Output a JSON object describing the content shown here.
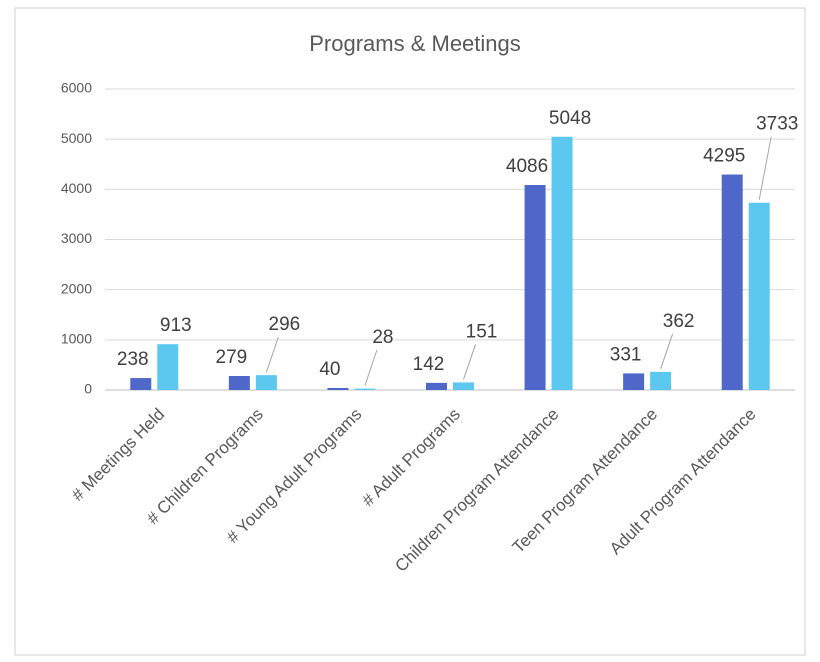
{
  "chart_data": {
    "type": "bar",
    "title": "Programs & Meetings",
    "categories": [
      "# Meetings Held",
      "# Children Programs",
      "# Young Adult Programs",
      "# Adult Programs",
      "Children Program Attendance",
      "Teen Program Attendance",
      "Adult Program Attendance"
    ],
    "series": [
      {
        "color": "#4f67c9",
        "values": [
          238,
          279,
          40,
          142,
          4086,
          331,
          4295
        ]
      },
      {
        "color": "#5cc8f0",
        "values": [
          913,
          296,
          28,
          151,
          5048,
          362,
          3733
        ]
      }
    ],
    "ylim": [
      0,
      6000
    ],
    "yticks": [
      0,
      1000,
      2000,
      3000,
      4000,
      5000,
      6000
    ],
    "grid": true
  }
}
